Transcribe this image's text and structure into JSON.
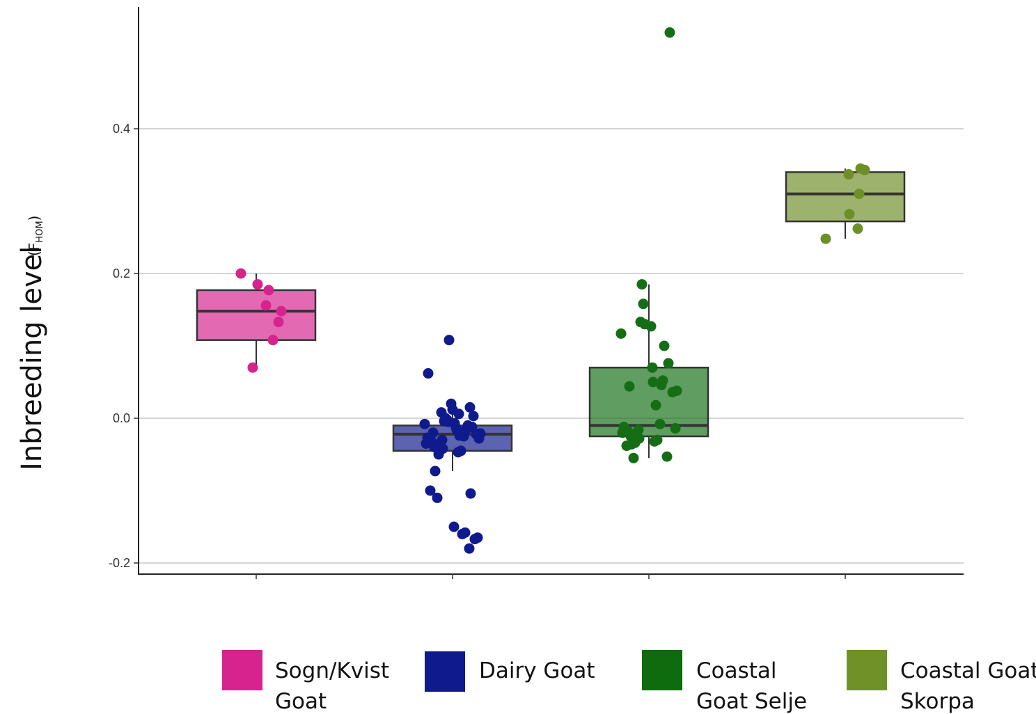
{
  "chart_data": {
    "type": "box",
    "ylabel": "Inbreeding level",
    "ylabel_qualifier": {
      "prefix": "(F",
      "subscript": "HOM",
      "suffix": ")"
    },
    "yticks": [
      "-0.2",
      "0.0",
      "0.2",
      "0.4"
    ],
    "ytick_values": [
      -0.2,
      0.0,
      0.2,
      0.4
    ],
    "ylim": [
      -0.215,
      0.57
    ],
    "grid": "horizontal",
    "legend_position": "bottom",
    "series": [
      {
        "name": "Sogn/Kvist Goat",
        "color": "#D6238E",
        "box": {
          "whisker_low": 0.07,
          "q1": 0.108,
          "median": 0.148,
          "q3": 0.177,
          "whisker_high": 0.2
        },
        "points": [
          0.2,
          0.185,
          0.177,
          0.156,
          0.148,
          0.133,
          0.108,
          0.07
        ]
      },
      {
        "name": "Dairy Goat",
        "color": "#0F1A8C",
        "box": {
          "whisker_low": -0.073,
          "q1": -0.045,
          "median": -0.022,
          "q3": -0.01,
          "whisker_high": 0.02
        },
        "points": [
          0.108,
          0.062,
          0.02,
          0.015,
          0.012,
          0.008,
          0.006,
          0.003,
          0.0,
          -0.002,
          -0.004,
          -0.005,
          -0.007,
          -0.008,
          -0.01,
          -0.012,
          -0.013,
          -0.015,
          -0.016,
          -0.018,
          -0.02,
          -0.021,
          -0.022,
          -0.024,
          -0.025,
          -0.027,
          -0.028,
          -0.03,
          -0.032,
          -0.035,
          -0.037,
          -0.04,
          -0.042,
          -0.045,
          -0.047,
          -0.05,
          -0.073,
          -0.1,
          -0.104,
          -0.11,
          -0.15,
          -0.158,
          -0.16,
          -0.165,
          -0.167,
          -0.18
        ]
      },
      {
        "name": "Coastal Goat Selje",
        "color": "#156E15",
        "box": {
          "whisker_low": -0.055,
          "q1": -0.025,
          "median": -0.01,
          "q3": 0.07,
          "whisker_high": 0.185
        },
        "points": [
          0.533,
          0.185,
          0.158,
          0.133,
          0.13,
          0.127,
          0.117,
          0.1,
          0.076,
          0.07,
          0.052,
          0.05,
          0.046,
          0.044,
          0.038,
          0.036,
          0.018,
          -0.008,
          -0.012,
          -0.014,
          -0.016,
          -0.018,
          -0.02,
          -0.022,
          -0.025,
          -0.028,
          -0.03,
          -0.032,
          -0.034,
          -0.036,
          -0.038,
          -0.053,
          -0.055
        ]
      },
      {
        "name": "Coastal Goat Skorpa",
        "color": "#6E8F28",
        "box": {
          "whisker_low": 0.248,
          "q1": 0.272,
          "median": 0.31,
          "q3": 0.34,
          "whisker_high": 0.345
        },
        "points": [
          0.345,
          0.343,
          0.337,
          0.31,
          0.282,
          0.262,
          0.248
        ]
      }
    ]
  },
  "legend": {
    "items": [
      {
        "color": "#D6238E",
        "line1": "Sogn/Kvist",
        "line2": "Goat"
      },
      {
        "color": "#0F1A8C",
        "line1": "Dairy Goat",
        "line2": ""
      },
      {
        "color": "#0E6B0E",
        "line1": "Coastal",
        "line2": "Goat Selje"
      },
      {
        "color": "#6F9128",
        "line1": "Coastal Goat",
        "line2": "Skorpa"
      }
    ]
  }
}
